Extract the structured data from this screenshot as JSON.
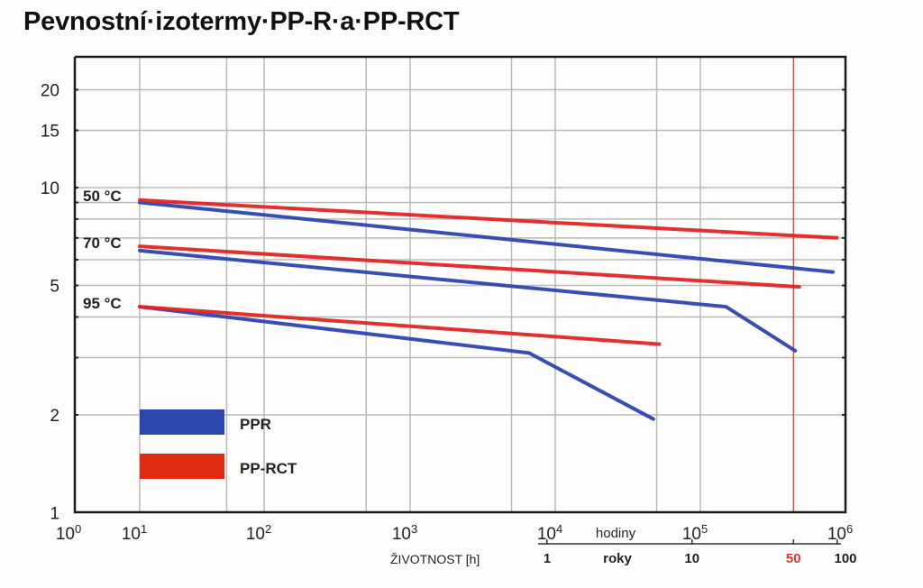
{
  "chart_data": {
    "type": "line",
    "title": "Pevnostní·izotermy·PP-R·a·PP-RCT",
    "xlabel": "ŽIVOTNOST [h]",
    "ylabel": "",
    "xscale": "log",
    "yscale": "log",
    "xlim": [
      1,
      1000000
    ],
    "ylim": [
      1,
      25
    ],
    "grid": true,
    "legend_position": "bottom-left",
    "x_ticks": [
      {
        "value": 1,
        "base": "10",
        "exp": "0"
      },
      {
        "value": 10,
        "base": "10",
        "exp": "1"
      },
      {
        "value": 100,
        "base": "10",
        "exp": "2"
      },
      {
        "value": 1000,
        "base": "10",
        "exp": "3"
      },
      {
        "value": 10000,
        "base": "10",
        "exp": "4"
      },
      {
        "value": 100000,
        "base": "10",
        "exp": "5"
      },
      {
        "value": 1000000,
        "base": "10",
        "exp": "6"
      }
    ],
    "x_minor_grid": [
      50,
      500,
      5000,
      50000
    ],
    "y_ticks": [
      1,
      2,
      5,
      10,
      15,
      20
    ],
    "y_grid": [
      1,
      2,
      3,
      4,
      5,
      6,
      7,
      8,
      9,
      10,
      15,
      20
    ],
    "secondary_axis": {
      "hours_label": "hodiny",
      "years_label": "roky",
      "ticks": [
        {
          "label": "1",
          "hours": 8760,
          "highlight": false
        },
        {
          "label": "10",
          "hours": 87600,
          "highlight": false
        },
        {
          "label": "50",
          "hours": 438000,
          "highlight": true
        },
        {
          "label": "100",
          "hours": 876000,
          "highlight": false
        }
      ]
    },
    "reference_line": {
      "hours": 438000,
      "label": "50 let",
      "color": "#e8332a"
    },
    "temperature_labels": [
      {
        "label": "50 °C",
        "value": 9.2
      },
      {
        "label": "70 °C",
        "value": 6.6
      },
      {
        "label": "95 °C",
        "value": 4.3
      }
    ],
    "series": [
      {
        "name": "PPR",
        "temperature": "50 °C",
        "color": "#2c46b0",
        "points": [
          [
            10,
            9.0
          ],
          [
            820000,
            5.5
          ]
        ]
      },
      {
        "name": "PP-RCT",
        "temperature": "50 °C",
        "color": "#e02424",
        "points": [
          [
            10,
            9.15
          ],
          [
            870000,
            7.0
          ]
        ]
      },
      {
        "name": "PPR",
        "temperature": "70 °C",
        "color": "#2c46b0",
        "points": [
          [
            10,
            6.4
          ],
          [
            150000,
            4.3
          ],
          [
            450000,
            3.15
          ]
        ]
      },
      {
        "name": "PP-RCT",
        "temperature": "70 °C",
        "color": "#e02424",
        "points": [
          [
            10,
            6.6
          ],
          [
            480000,
            4.95
          ]
        ]
      },
      {
        "name": "PPR",
        "temperature": "95 °C",
        "color": "#2c46b0",
        "points": [
          [
            10,
            4.3
          ],
          [
            6600,
            3.1
          ],
          [
            47500,
            1.94
          ]
        ]
      },
      {
        "name": "PP-RCT",
        "temperature": "95 °C",
        "color": "#e02424",
        "points": [
          [
            10,
            4.3
          ],
          [
            52000,
            3.3
          ]
        ]
      }
    ],
    "legend": [
      {
        "label": "PPR",
        "color": "#2c46b0"
      },
      {
        "label": "PP-RCT",
        "color": "#dd2a10"
      }
    ]
  }
}
